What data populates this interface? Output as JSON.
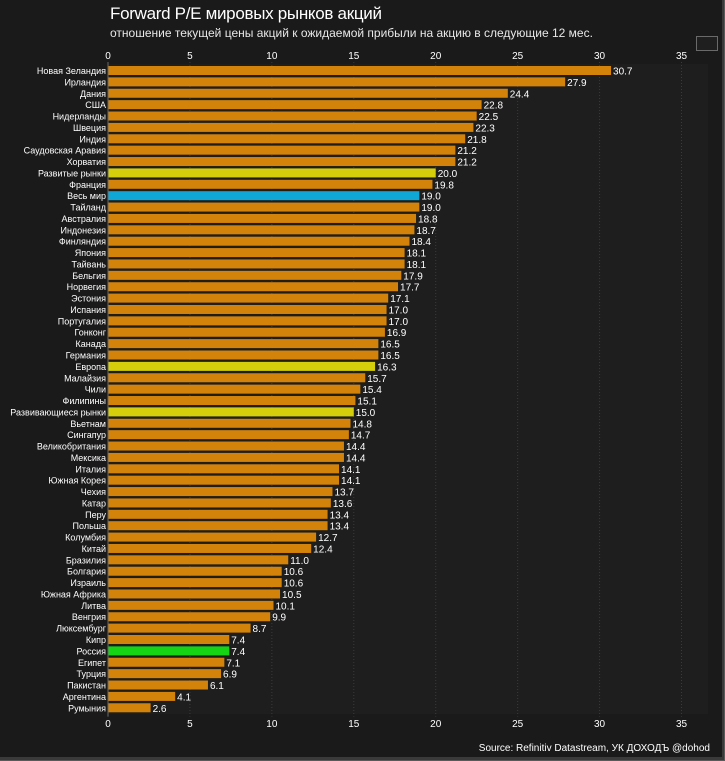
{
  "chart_data": {
    "type": "bar",
    "orientation": "horizontal",
    "title": "Forward P/E мировых рынков акций",
    "subtitle": "отношение текущей цены акций к ожидаемой прибыли на акцию в следующие 12 мес.",
    "source": "Source: Refinitiv Datastream, УК ДОХОДЪ @dohod",
    "xlabel": "",
    "ylabel": "",
    "xlim": [
      0,
      35
    ],
    "xticks": [
      0,
      5,
      10,
      15,
      20,
      25,
      30,
      35
    ],
    "xtick_labels": [
      "0",
      "5",
      "10",
      "15",
      "20",
      "25",
      "30",
      "35"
    ],
    "x_axis_positions": [
      "top",
      "bottom"
    ],
    "grid": "vertical-dotted",
    "legend": "none",
    "colors": {
      "default": "#d4830a",
      "aggregate": "#d4cf0a",
      "world": "#0ea7d6",
      "russia": "#14d414",
      "background": "#1a1a1a",
      "text": "#ffffff"
    },
    "categories": [
      "Новая Зеландия",
      "Ирландия",
      "Дания",
      "США",
      "Нидерланды",
      "Швеция",
      "Индия",
      "Саудовская Аравия",
      "Хорватия",
      "Развитые рынки",
      "Франция",
      "Весь мир",
      "Тайланд",
      "Австралия",
      "Индонезия",
      "Финляндия",
      "Япония",
      "Тайвань",
      "Бельгия",
      "Норвегия",
      "Эстония",
      "Испания",
      "Португалия",
      "Гонконг",
      "Канада",
      "Германия",
      "Европа",
      "Малайзия",
      "Чили",
      "Филипины",
      "Развивающиеся рынки",
      "Вьетнам",
      "Сингапур",
      "Великобритания",
      "Мексика",
      "Италия",
      "Южная Корея",
      "Чехия",
      "Катар",
      "Перу",
      "Польша",
      "Колумбия",
      "Китай",
      "Бразилия",
      "Болгария",
      "Израиль",
      "Южная Африка",
      "Литва",
      "Венгрия",
      "Люксембург",
      "Кипр",
      "Россия",
      "Египет",
      "Турция",
      "Пакистан",
      "Аргентина",
      "Румыния"
    ],
    "values": [
      30.7,
      27.9,
      24.4,
      22.8,
      22.5,
      22.3,
      21.8,
      21.2,
      21.2,
      20.0,
      19.8,
      19.0,
      19.0,
      18.8,
      18.7,
      18.4,
      18.1,
      18.1,
      17.9,
      17.7,
      17.1,
      17.0,
      17.0,
      16.9,
      16.5,
      16.5,
      16.3,
      15.7,
      15.4,
      15.1,
      15.0,
      14.8,
      14.7,
      14.4,
      14.4,
      14.1,
      14.1,
      13.7,
      13.6,
      13.4,
      13.4,
      12.7,
      12.4,
      11.0,
      10.6,
      10.6,
      10.5,
      10.1,
      9.9,
      8.7,
      7.4,
      7.4,
      7.1,
      6.9,
      6.1,
      4.1,
      2.6
    ],
    "value_labels": [
      "30.7",
      "27.9",
      "24.4",
      "22.8",
      "22.5",
      "22.3",
      "21.8",
      "21.2",
      "21.2",
      "20.0",
      "19.8",
      "19.0",
      "19.0",
      "18.8",
      "18.7",
      "18.4",
      "18.1",
      "18.1",
      "17.9",
      "17.7",
      "17.1",
      "17.0",
      "17.0",
      "16.9",
      "16.5",
      "16.5",
      "16.3",
      "15.7",
      "15.4",
      "15.1",
      "15.0",
      "14.8",
      "14.7",
      "14.4",
      "14.4",
      "14.1",
      "14.1",
      "13.7",
      "13.6",
      "13.4",
      "13.4",
      "12.7",
      "12.4",
      "11.0",
      "10.6",
      "10.6",
      "10.5",
      "10.1",
      "9.9",
      "8.7",
      "7.4",
      "7.4",
      "7.1",
      "6.9",
      "6.1",
      "4.1",
      "2.6"
    ],
    "highlight": {
      "Развитые рынки": "aggregate",
      "Европа": "aggregate",
      "Развивающиеся рынки": "aggregate",
      "Весь мир": "world",
      "Россия": "russia"
    }
  }
}
